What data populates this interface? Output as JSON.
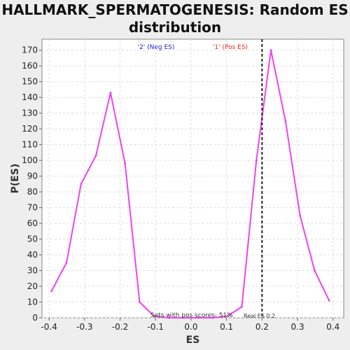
{
  "chart_data": {
    "type": "line",
    "title": "HALLMARK_SPERMATOGENESIS: Random ES distribution",
    "xlabel": "ES",
    "ylabel": "P(ES)",
    "xlim": [
      -0.42,
      0.43
    ],
    "ylim": [
      0,
      177
    ],
    "x_ticks": [
      "-0.4",
      "-0.3",
      "-0.2",
      "-0.1",
      "0.0",
      "0.1",
      "0.2",
      "0.3",
      "0.4"
    ],
    "y_ticks": [
      "0",
      "10",
      "20",
      "30",
      "40",
      "50",
      "60",
      "70",
      "80",
      "90",
      "100",
      "110",
      "120",
      "130",
      "140",
      "150",
      "160",
      "170"
    ],
    "grid": true,
    "series": [
      {
        "color": "#ee44ee",
        "x": [
          -0.393,
          -0.351,
          -0.31,
          -0.268,
          -0.227,
          -0.186,
          -0.145,
          -0.104,
          -0.062,
          -0.021,
          0.02,
          0.061,
          0.102,
          0.143,
          0.184,
          0.225,
          0.266,
          0.307,
          0.348,
          0.389
        ],
        "y": [
          17,
          35,
          85,
          103,
          143,
          98,
          10,
          1,
          0,
          0,
          0,
          0,
          1,
          7,
          100,
          170,
          125,
          65,
          30,
          11
        ]
      }
    ],
    "real_es": 0.2,
    "annotations": {
      "neg_label": "'2' (Neg ES)",
      "neg_color": "#2222cc",
      "pos_label": "'1' (Pos ES)",
      "pos_color": "#ee2222",
      "sets_text": "Sets with pos scores: 51%",
      "real_es_text": "Real ES 0.2"
    }
  }
}
